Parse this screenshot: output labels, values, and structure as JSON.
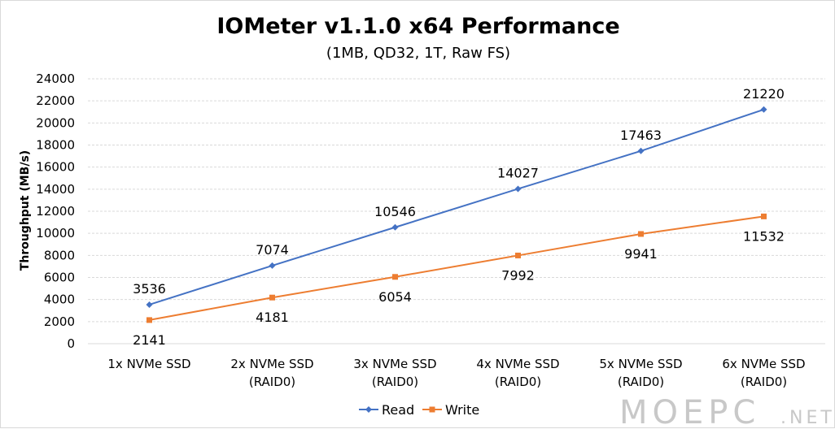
{
  "chart_data": {
    "type": "line",
    "title": "IOMeter v1.1.0 x64 Performance",
    "subtitle": "(1MB, QD32, 1T, Raw FS)",
    "xlabel": "",
    "ylabel": "Throughput (MB/s)",
    "categories": [
      [
        "1x NVMe SSD"
      ],
      [
        "2x NVMe SSD",
        "(RAID0)"
      ],
      [
        "3x NVMe SSD",
        "(RAID0)"
      ],
      [
        "4x NVMe SSD",
        "(RAID0)"
      ],
      [
        "5x NVMe SSD",
        "(RAID0)"
      ],
      [
        "6x NVMe SSD",
        "(RAID0)"
      ]
    ],
    "ylim": [
      0,
      24000
    ],
    "yticks": [
      0,
      2000,
      4000,
      6000,
      8000,
      10000,
      12000,
      14000,
      16000,
      18000,
      20000,
      22000,
      24000
    ],
    "grid": true,
    "legend": "bottom",
    "series": [
      {
        "name": "Read",
        "values": [
          3536,
          7074,
          10546,
          14027,
          17463,
          21220
        ],
        "color": "#4472c4",
        "marker": "diamond",
        "label_position": "above"
      },
      {
        "name": "Write",
        "values": [
          2141,
          4181,
          6054,
          7992,
          9941,
          11532
        ],
        "color": "#ed7d31",
        "marker": "square",
        "label_position": "below"
      }
    ]
  },
  "watermark": {
    "main": "MOEPC",
    "suffix": ".NET"
  }
}
